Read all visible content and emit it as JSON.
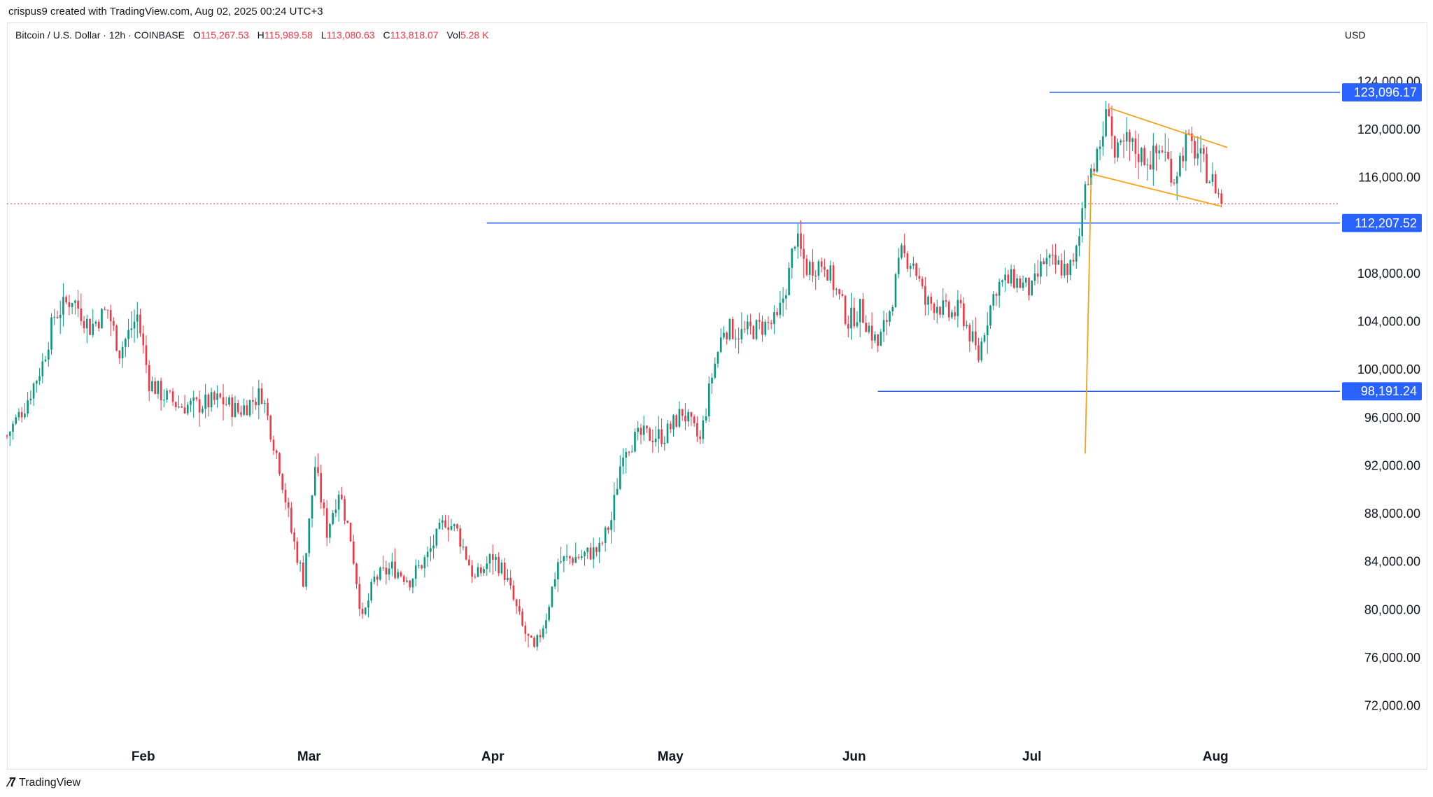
{
  "header": {
    "credit": "crispus9 created with TradingView.com, Aug 02, 2025 00:24 UTC+3"
  },
  "legend": {
    "symbol": "Bitcoin / U.S. Dollar · 12h · COINBASE",
    "o_label": "O",
    "o_value": "115,267.53",
    "h_label": "H",
    "h_value": "115,989.58",
    "l_label": "L",
    "l_value": "113,080.63",
    "c_label": "C",
    "c_value": "113,818.07",
    "vol_label": "Vol",
    "vol_value": "5.28 K"
  },
  "currency": "USD",
  "footer": {
    "brand": "TradingView",
    "icon": "tradingview-logo-icon"
  },
  "colors": {
    "up": "#089981",
    "down": "#f23645",
    "level": "#2962ff",
    "pattern": "#f7a21b",
    "current": "#f23645"
  },
  "chart_data": {
    "type": "candlestick",
    "title": "Bitcoin / U.S. Dollar · 12h · COINBASE",
    "ylim": [
      69000,
      127000
    ],
    "y_ticks": [
      72000,
      76000,
      80000,
      84000,
      88000,
      92000,
      96000,
      100000,
      104000,
      108000,
      116000,
      120000,
      124000
    ],
    "y_tick_labels": [
      "72,000.00",
      "76,000.00",
      "80,000.00",
      "84,000.00",
      "88,000.00",
      "92,000.00",
      "96,000.00",
      "100,000.00",
      "104,000.00",
      "108,000.00",
      "116,000.00",
      "120,000.00",
      "124,000.00"
    ],
    "x_labels": [
      "Feb",
      "Mar",
      "Apr",
      "May",
      "Jun",
      "Jul",
      "Aug"
    ],
    "x_label_dates": [
      "2025-02-01",
      "2025-03-01",
      "2025-04-01",
      "2025-05-01",
      "2025-06-01",
      "2025-07-01",
      "2025-08-01"
    ],
    "x_range": [
      "2025-01-09",
      "2025-08-22"
    ],
    "current_price": 113818.07,
    "horizontal_levels": [
      {
        "value": 123096.17,
        "label": "123,096.17",
        "from": "2025-07-04"
      },
      {
        "value": 112207.52,
        "label": "112,207.52",
        "from": "2025-03-31"
      },
      {
        "value": 98191.24,
        "label": "98,191.24",
        "from": "2025-06-05"
      }
    ],
    "trendlines": [
      {
        "from": [
          "2025-07-10",
          93000
        ],
        "to": [
          "2025-07-11",
          116000
        ]
      },
      {
        "from": [
          "2025-07-14",
          121800
        ],
        "to": [
          "2025-08-03",
          118500
        ]
      },
      {
        "from": [
          "2025-07-11",
          116300
        ],
        "to": [
          "2025-08-02",
          113600
        ]
      }
    ],
    "anchors": [
      [
        "2025-01-09",
        94500
      ],
      [
        "2025-01-12",
        97000
      ],
      [
        "2025-01-15",
        100500
      ],
      [
        "2025-01-17",
        104500
      ],
      [
        "2025-01-20",
        106000
      ],
      [
        "2025-01-23",
        103500
      ],
      [
        "2025-01-26",
        105000
      ],
      [
        "2025-01-28",
        101500
      ],
      [
        "2025-01-31",
        104500
      ],
      [
        "2025-02-02",
        99000
      ],
      [
        "2025-02-04",
        98000
      ],
      [
        "2025-02-07",
        97000
      ],
      [
        "2025-02-10",
        97000
      ],
      [
        "2025-02-14",
        97500
      ],
      [
        "2025-02-17",
        96500
      ],
      [
        "2025-02-21",
        98000
      ],
      [
        "2025-02-24",
        92000
      ],
      [
        "2025-02-26",
        86500
      ],
      [
        "2025-02-28",
        82500
      ],
      [
        "2025-03-02",
        92000
      ],
      [
        "2025-03-04",
        86500
      ],
      [
        "2025-03-06",
        90000
      ],
      [
        "2025-03-08",
        86000
      ],
      [
        "2025-03-10",
        79000
      ],
      [
        "2025-03-12",
        82500
      ],
      [
        "2025-03-15",
        83500
      ],
      [
        "2025-03-18",
        82500
      ],
      [
        "2025-03-21",
        84500
      ],
      [
        "2025-03-24",
        87500
      ],
      [
        "2025-03-26",
        86500
      ],
      [
        "2025-03-29",
        82500
      ],
      [
        "2025-04-01",
        84500
      ],
      [
        "2025-04-03",
        83000
      ],
      [
        "2025-04-06",
        78500
      ],
      [
        "2025-04-08",
        76500
      ],
      [
        "2025-04-10",
        79500
      ],
      [
        "2025-04-12",
        84000
      ],
      [
        "2025-04-16",
        84500
      ],
      [
        "2025-04-19",
        85000
      ],
      [
        "2025-04-21",
        87500
      ],
      [
        "2025-04-23",
        93500
      ],
      [
        "2025-04-26",
        94500
      ],
      [
        "2025-04-30",
        94500
      ],
      [
        "2025-05-03",
        96500
      ],
      [
        "2025-05-06",
        94000
      ],
      [
        "2025-05-08",
        99500
      ],
      [
        "2025-05-10",
        103500
      ],
      [
        "2025-05-13",
        103000
      ],
      [
        "2025-05-16",
        103500
      ],
      [
        "2025-05-19",
        104000
      ],
      [
        "2025-05-21",
        108000
      ],
      [
        "2025-05-22",
        111000
      ],
      [
        "2025-05-24",
        108500
      ],
      [
        "2025-05-27",
        109000
      ],
      [
        "2025-05-29",
        106500
      ],
      [
        "2025-05-31",
        104000
      ],
      [
        "2025-06-02",
        105000
      ],
      [
        "2025-06-05",
        102000
      ],
      [
        "2025-06-07",
        105000
      ],
      [
        "2025-06-09",
        109500
      ],
      [
        "2025-06-11",
        109000
      ],
      [
        "2025-06-13",
        105500
      ],
      [
        "2025-06-15",
        105500
      ],
      [
        "2025-06-17",
        104500
      ],
      [
        "2025-06-19",
        105000
      ],
      [
        "2025-06-22",
        101000
      ],
      [
        "2025-06-23",
        103500
      ],
      [
        "2025-06-25",
        107000
      ],
      [
        "2025-06-28",
        107500
      ],
      [
        "2025-07-01",
        106500
      ],
      [
        "2025-07-03",
        109000
      ],
      [
        "2025-07-06",
        108500
      ],
      [
        "2025-07-08",
        108500
      ],
      [
        "2025-07-09",
        111000
      ],
      [
        "2025-07-10",
        116000
      ],
      [
        "2025-07-12",
        117500
      ],
      [
        "2025-07-14",
        122000
      ],
      [
        "2025-07-15",
        117500
      ],
      [
        "2025-07-17",
        119000
      ],
      [
        "2025-07-19",
        118000
      ],
      [
        "2025-07-21",
        117500
      ],
      [
        "2025-07-23",
        118500
      ],
      [
        "2025-07-25",
        116000
      ],
      [
        "2025-07-27",
        119000
      ],
      [
        "2025-07-29",
        118000
      ],
      [
        "2025-07-31",
        116000
      ],
      [
        "2025-08-01",
        115300
      ],
      [
        "2025-08-02",
        113818
      ]
    ]
  }
}
